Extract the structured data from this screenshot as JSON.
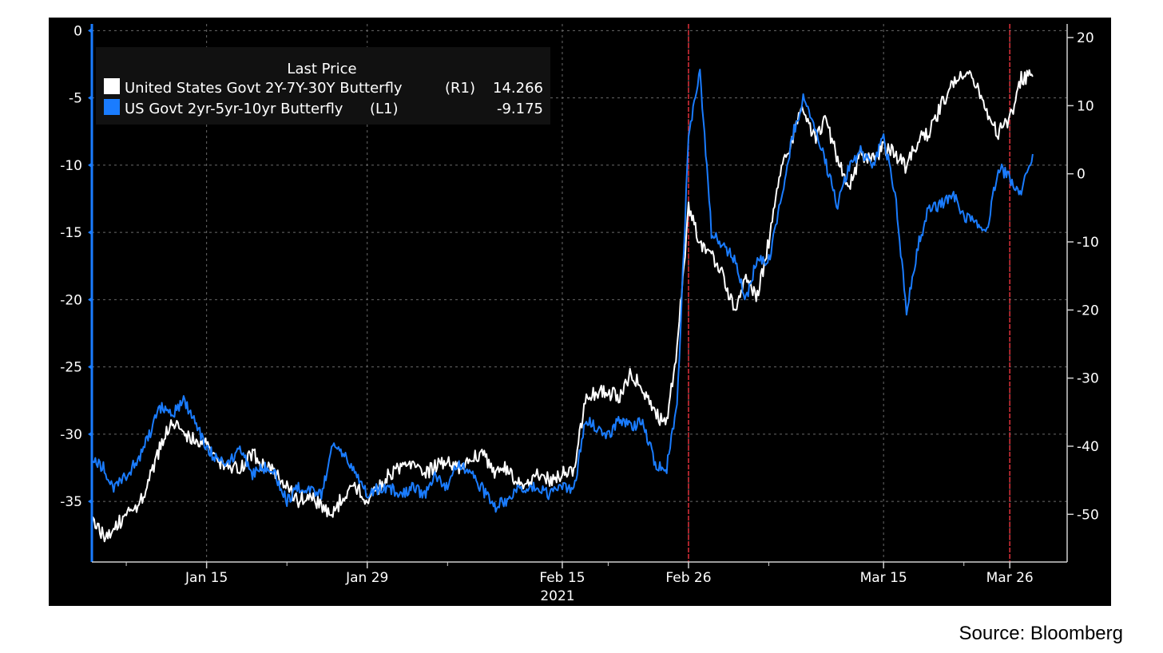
{
  "chart_data": {
    "type": "line",
    "legend": {
      "title": "Last Price",
      "placement": "top-left",
      "entries": [
        {
          "label": "United States Govt 2Y-7Y-30Y Butterfly",
          "axis": "(R1)",
          "last_value": "14.266",
          "color": "#ffffff"
        },
        {
          "label": "US Govt 2yr-5yr-10yr Butterfly",
          "axis": "(L1)",
          "last_value": "-9.175",
          "color": "#1a7cff"
        }
      ]
    },
    "x_axis": {
      "range": [
        "2021-01-05",
        "2021-03-31"
      ],
      "tick_labels": [
        {
          "date": "2021-01-15",
          "label": "Jan 15"
        },
        {
          "date": "2021-01-29",
          "label": "Jan 29"
        },
        {
          "date": "2021-02-15",
          "label": "Feb 15"
        },
        {
          "date": "2021-02-26",
          "label": "Feb 26"
        },
        {
          "date": "2021-03-15",
          "label": "Mar 15"
        },
        {
          "date": "2021-03-26",
          "label": "Mar 26"
        }
      ],
      "minor_ticks": [
        "2021-01-08",
        "2021-01-22",
        "2021-02-05",
        "2021-02-19",
        "2021-03-05",
        "2021-03-22"
      ],
      "year_label": "2021"
    },
    "left_axis": {
      "range": [
        -39.5,
        0.5
      ],
      "ticks": [
        0,
        -5,
        -10,
        -15,
        -20,
        -25,
        -30,
        -35
      ],
      "color": "#1a7cff"
    },
    "right_axis": {
      "range": [
        -57,
        22
      ],
      "ticks": [
        20,
        10,
        0,
        -10,
        -20,
        -30,
        -40,
        -50
      ]
    },
    "vertical_markers": [
      "2021-02-26",
      "2021-03-26"
    ],
    "grid": true,
    "series": [
      {
        "name": "United States Govt 2Y-7Y-30Y Butterfly",
        "axis": "right",
        "color": "#ffffff",
        "points": [
          [
            "2021-01-05",
            -51
          ],
          [
            "2021-01-06",
            -53
          ],
          [
            "2021-01-07",
            -52
          ],
          [
            "2021-01-08",
            -50
          ],
          [
            "2021-01-09",
            -49
          ],
          [
            "2021-01-10",
            -45
          ],
          [
            "2021-01-11",
            -40
          ],
          [
            "2021-01-12",
            -36
          ],
          [
            "2021-01-13",
            -38
          ],
          [
            "2021-01-14",
            -39
          ],
          [
            "2021-01-15",
            -40
          ],
          [
            "2021-01-16",
            -42
          ],
          [
            "2021-01-17",
            -43
          ],
          [
            "2021-01-18",
            -43
          ],
          [
            "2021-01-19",
            -41
          ],
          [
            "2021-01-20",
            -43
          ],
          [
            "2021-01-21",
            -44
          ],
          [
            "2021-01-22",
            -46
          ],
          [
            "2021-01-23",
            -48
          ],
          [
            "2021-01-24",
            -47
          ],
          [
            "2021-01-25",
            -49
          ],
          [
            "2021-01-26",
            -50
          ],
          [
            "2021-01-27",
            -47
          ],
          [
            "2021-01-28",
            -46
          ],
          [
            "2021-01-29",
            -48
          ],
          [
            "2021-01-30",
            -46
          ],
          [
            "2021-01-31",
            -44
          ],
          [
            "2021-02-01",
            -43
          ],
          [
            "2021-02-02",
            -42
          ],
          [
            "2021-02-03",
            -44
          ],
          [
            "2021-02-04",
            -43
          ],
          [
            "2021-02-05",
            -42
          ],
          [
            "2021-02-06",
            -43
          ],
          [
            "2021-02-07",
            -42
          ],
          [
            "2021-02-08",
            -41
          ],
          [
            "2021-02-09",
            -44
          ],
          [
            "2021-02-10",
            -43
          ],
          [
            "2021-02-11",
            -45
          ],
          [
            "2021-02-12",
            -46
          ],
          [
            "2021-02-13",
            -44
          ],
          [
            "2021-02-14",
            -45
          ],
          [
            "2021-02-15",
            -44
          ],
          [
            "2021-02-16",
            -44
          ],
          [
            "2021-02-17",
            -33
          ],
          [
            "2021-02-18",
            -32
          ],
          [
            "2021-02-19",
            -32
          ],
          [
            "2021-02-20",
            -33
          ],
          [
            "2021-02-21",
            -29
          ],
          [
            "2021-02-22",
            -32
          ],
          [
            "2021-02-23",
            -35
          ],
          [
            "2021-02-24",
            -37
          ],
          [
            "2021-02-25",
            -26
          ],
          [
            "2021-02-26",
            -5
          ],
          [
            "2021-02-27",
            -10
          ],
          [
            "2021-02-28",
            -12
          ],
          [
            "2021-03-01",
            -15
          ],
          [
            "2021-03-02",
            -20
          ],
          [
            "2021-03-03",
            -15
          ],
          [
            "2021-03-04",
            -18
          ],
          [
            "2021-03-05",
            -10
          ],
          [
            "2021-03-06",
            0
          ],
          [
            "2021-03-07",
            5
          ],
          [
            "2021-03-08",
            10
          ],
          [
            "2021-03-09",
            5
          ],
          [
            "2021-03-10",
            8
          ],
          [
            "2021-03-11",
            2
          ],
          [
            "2021-03-12",
            -2
          ],
          [
            "2021-03-13",
            3
          ],
          [
            "2021-03-14",
            2
          ],
          [
            "2021-03-15",
            4
          ],
          [
            "2021-03-16",
            3
          ],
          [
            "2021-03-17",
            1
          ],
          [
            "2021-03-18",
            5
          ],
          [
            "2021-03-19",
            6
          ],
          [
            "2021-03-20",
            10
          ],
          [
            "2021-03-21",
            13
          ],
          [
            "2021-03-22",
            15
          ],
          [
            "2021-03-23",
            13
          ],
          [
            "2021-03-24",
            9
          ],
          [
            "2021-03-25",
            6
          ],
          [
            "2021-03-26",
            8
          ],
          [
            "2021-03-27",
            14
          ],
          [
            "2021-03-28",
            14.266
          ]
        ]
      },
      {
        "name": "US Govt 2yr-5yr-10yr Butterfly",
        "axis": "left",
        "color": "#1a7cff",
        "points": [
          [
            "2021-01-05",
            -32
          ],
          [
            "2021-01-06",
            -32.5
          ],
          [
            "2021-01-07",
            -34
          ],
          [
            "2021-01-08",
            -33
          ],
          [
            "2021-01-09",
            -32
          ],
          [
            "2021-01-10",
            -30
          ],
          [
            "2021-01-11",
            -28
          ],
          [
            "2021-01-12",
            -28.5
          ],
          [
            "2021-01-13",
            -27.5
          ],
          [
            "2021-01-14",
            -29
          ],
          [
            "2021-01-15",
            -31
          ],
          [
            "2021-01-16",
            -32
          ],
          [
            "2021-01-17",
            -32
          ],
          [
            "2021-01-18",
            -31
          ],
          [
            "2021-01-19",
            -33
          ],
          [
            "2021-01-20",
            -32.5
          ],
          [
            "2021-01-21",
            -33
          ],
          [
            "2021-01-22",
            -35
          ],
          [
            "2021-01-23",
            -34
          ],
          [
            "2021-01-24",
            -34
          ],
          [
            "2021-01-25",
            -34.5
          ],
          [
            "2021-01-26",
            -31
          ],
          [
            "2021-01-27",
            -31.5
          ],
          [
            "2021-01-28",
            -33
          ],
          [
            "2021-01-29",
            -34.5
          ],
          [
            "2021-01-30",
            -34
          ],
          [
            "2021-01-31",
            -34
          ],
          [
            "2021-02-01",
            -34.5
          ],
          [
            "2021-02-02",
            -34
          ],
          [
            "2021-02-03",
            -34.5
          ],
          [
            "2021-02-04",
            -33
          ],
          [
            "2021-02-05",
            -34
          ],
          [
            "2021-02-06",
            -32
          ],
          [
            "2021-02-07",
            -33
          ],
          [
            "2021-02-08",
            -34
          ],
          [
            "2021-02-09",
            -35.5
          ],
          [
            "2021-02-10",
            -35
          ],
          [
            "2021-02-11",
            -34
          ],
          [
            "2021-02-12",
            -34
          ],
          [
            "2021-02-13",
            -34
          ],
          [
            "2021-02-14",
            -34.5
          ],
          [
            "2021-02-15",
            -34
          ],
          [
            "2021-02-16",
            -34.2
          ],
          [
            "2021-02-17",
            -29
          ],
          [
            "2021-02-18",
            -29.5
          ],
          [
            "2021-02-19",
            -30
          ],
          [
            "2021-02-20",
            -29
          ],
          [
            "2021-02-21",
            -29.5
          ],
          [
            "2021-02-22",
            -29
          ],
          [
            "2021-02-23",
            -32
          ],
          [
            "2021-02-24",
            -33
          ],
          [
            "2021-02-25",
            -28
          ],
          [
            "2021-02-26",
            -8
          ],
          [
            "2021-02-27",
            -3
          ],
          [
            "2021-02-28",
            -15
          ],
          [
            "2021-03-01",
            -16
          ],
          [
            "2021-03-02",
            -17
          ],
          [
            "2021-03-03",
            -20
          ],
          [
            "2021-03-04",
            -17
          ],
          [
            "2021-03-05",
            -17
          ],
          [
            "2021-03-06",
            -13
          ],
          [
            "2021-03-07",
            -8
          ],
          [
            "2021-03-08",
            -5
          ],
          [
            "2021-03-09",
            -7
          ],
          [
            "2021-03-10",
            -10
          ],
          [
            "2021-03-11",
            -13
          ],
          [
            "2021-03-12",
            -10
          ],
          [
            "2021-03-13",
            -9
          ],
          [
            "2021-03-14",
            -10
          ],
          [
            "2021-03-15",
            -8
          ],
          [
            "2021-03-16",
            -12
          ],
          [
            "2021-03-17",
            -21
          ],
          [
            "2021-03-18",
            -16
          ],
          [
            "2021-03-19",
            -13
          ],
          [
            "2021-03-20",
            -13
          ],
          [
            "2021-03-21",
            -12
          ],
          [
            "2021-03-22",
            -14
          ],
          [
            "2021-03-23",
            -14
          ],
          [
            "2021-03-24",
            -15
          ],
          [
            "2021-03-25",
            -10
          ],
          [
            "2021-03-26",
            -11
          ],
          [
            "2021-03-27",
            -12
          ],
          [
            "2021-03-28",
            -9.175
          ]
        ]
      }
    ]
  },
  "source": "Source: Bloomberg"
}
